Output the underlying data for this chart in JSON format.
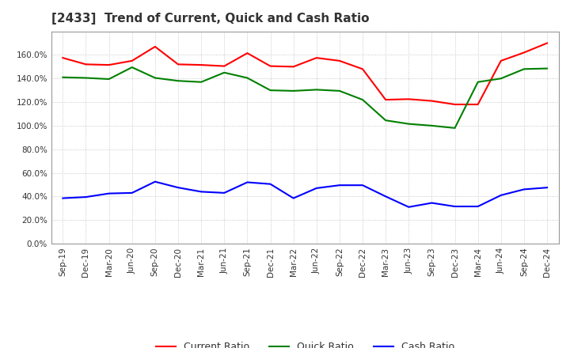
{
  "title": "[2433]  Trend of Current, Quick and Cash Ratio",
  "x_labels": [
    "Sep-19",
    "Dec-19",
    "Mar-20",
    "Jun-20",
    "Sep-20",
    "Dec-20",
    "Mar-21",
    "Jun-21",
    "Sep-21",
    "Dec-21",
    "Mar-22",
    "Jun-22",
    "Sep-22",
    "Dec-22",
    "Mar-23",
    "Jun-23",
    "Sep-23",
    "Dec-23",
    "Mar-24",
    "Jun-24",
    "Sep-24",
    "Dec-24"
  ],
  "current_ratio": [
    157.5,
    152.0,
    151.5,
    155.0,
    167.0,
    152.0,
    151.5,
    150.5,
    161.5,
    150.5,
    150.0,
    157.5,
    155.0,
    148.0,
    122.0,
    122.5,
    121.0,
    118.0,
    118.0,
    155.0,
    162.0,
    170.0
  ],
  "quick_ratio": [
    141.0,
    140.5,
    139.5,
    149.5,
    140.5,
    138.0,
    137.0,
    145.0,
    140.5,
    130.0,
    129.5,
    130.5,
    129.5,
    122.0,
    104.5,
    101.5,
    100.0,
    98.0,
    137.0,
    140.0,
    148.0,
    148.5
  ],
  "cash_ratio": [
    38.5,
    39.5,
    42.5,
    43.0,
    52.5,
    47.5,
    44.0,
    43.0,
    52.0,
    50.5,
    38.5,
    47.0,
    49.5,
    49.5,
    40.0,
    31.0,
    34.5,
    31.5,
    31.5,
    41.0,
    46.0,
    47.5
  ],
  "current_color": "#ff0000",
  "quick_color": "#008000",
  "cash_color": "#0000ff",
  "ylim": [
    0,
    180
  ],
  "ytick_values": [
    0,
    20,
    40,
    60,
    80,
    100,
    120,
    140,
    160
  ],
  "background_color": "#ffffff",
  "plot_bg_color": "#ffffff",
  "grid_color": "#bbbbbb",
  "title_color": "#333333",
  "legend_labels": [
    "Current Ratio",
    "Quick Ratio",
    "Cash Ratio"
  ],
  "title_fontsize": 11,
  "tick_fontsize": 7.5,
  "legend_fontsize": 9
}
